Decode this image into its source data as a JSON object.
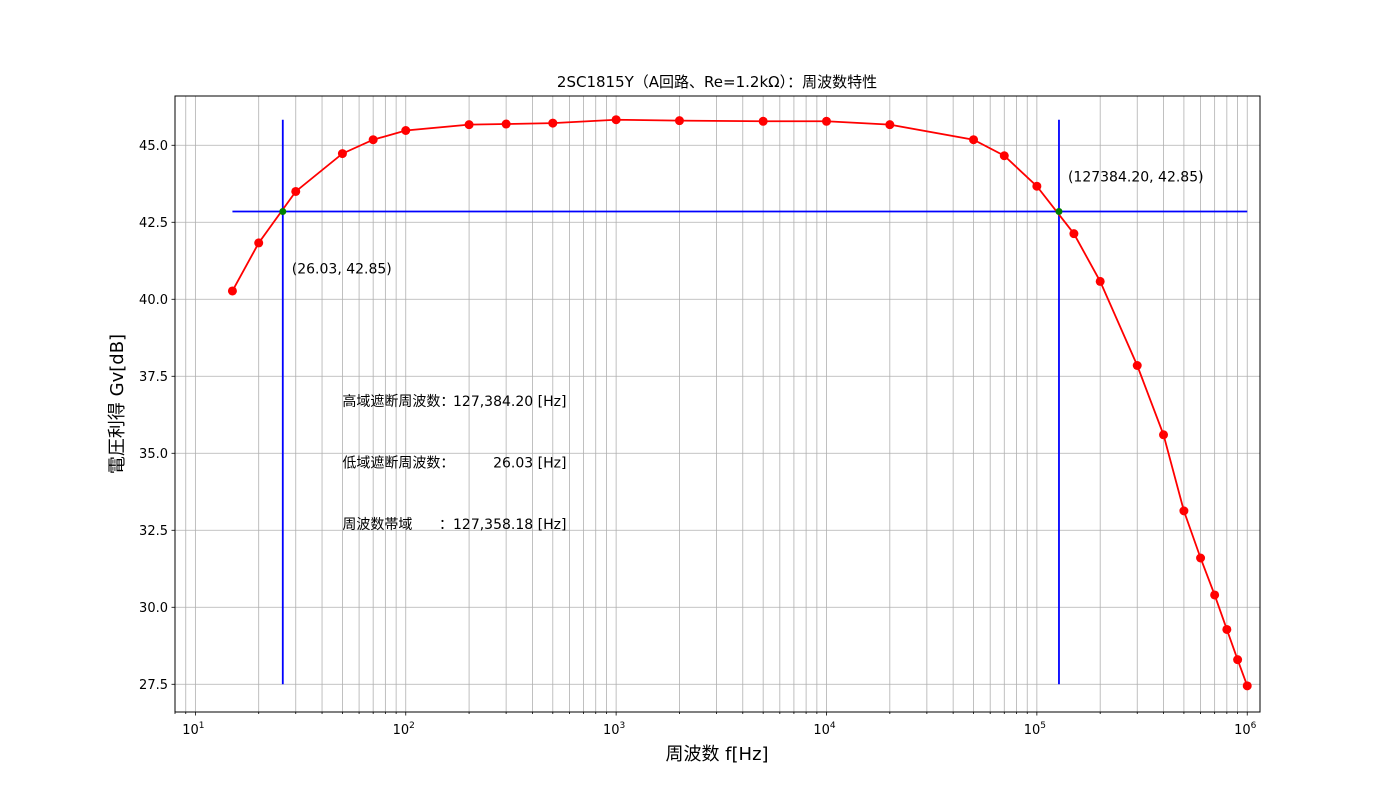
{
  "chart_data": {
    "type": "line",
    "title": "2SC1815Y（A回路、Re=1.2kΩ）：周波数特性",
    "xlabel": "周波数 f[Hz]",
    "ylabel": "電圧利得 Gv[dB]",
    "xscale": "log",
    "xlim": [
      8,
      1150000
    ],
    "ylim": [
      26.6,
      46.6
    ],
    "x_ticks": [
      {
        "value": 10,
        "base": "10",
        "exp": "1"
      },
      {
        "value": 100,
        "base": "10",
        "exp": "2"
      },
      {
        "value": 1000,
        "base": "10",
        "exp": "3"
      },
      {
        "value": 10000,
        "base": "10",
        "exp": "4"
      },
      {
        "value": 100000,
        "base": "10",
        "exp": "5"
      },
      {
        "value": 1000000,
        "base": "10",
        "exp": "6"
      }
    ],
    "y_ticks": [
      {
        "value": 27.5,
        "label": "27.5"
      },
      {
        "value": 30.0,
        "label": "30.0"
      },
      {
        "value": 32.5,
        "label": "32.5"
      },
      {
        "value": 35.0,
        "label": "35.0"
      },
      {
        "value": 37.5,
        "label": "37.5"
      },
      {
        "value": 40.0,
        "label": "40.0"
      },
      {
        "value": 42.5,
        "label": "42.5"
      },
      {
        "value": 45.0,
        "label": "45.0"
      }
    ],
    "grid": true,
    "series": [
      {
        "color": "#ff0000",
        "marker": "circle",
        "x": [
          15,
          20,
          30,
          50,
          70,
          100,
          200,
          300,
          500,
          1000,
          2000,
          5000,
          10000,
          20000,
          50000,
          70000,
          100000,
          150000,
          200000,
          300000,
          400000,
          500000,
          600000,
          700000,
          800000,
          900000,
          1000000
        ],
        "y": [
          40.27,
          41.83,
          43.5,
          44.73,
          45.18,
          45.48,
          45.67,
          45.69,
          45.72,
          45.83,
          45.8,
          45.78,
          45.78,
          45.67,
          45.18,
          44.66,
          43.67,
          42.13,
          40.58,
          37.85,
          35.6,
          33.13,
          31.6,
          30.4,
          29.28,
          28.3,
          27.45
        ]
      }
    ],
    "reference_lines": {
      "color": "#0000ff",
      "horizontal": {
        "y": 42.85,
        "x_from": 15,
        "x_to": 1000000
      },
      "vertical": [
        {
          "x": 26.03,
          "y_from": 27.5,
          "y_to": 45.83
        },
        {
          "x": 127384.2,
          "y_from": 27.5,
          "y_to": 45.83
        }
      ]
    },
    "cutoff_points": {
      "color": "#008000",
      "points": [
        {
          "x": 26.03,
          "y": 42.85,
          "label": "(26.03, 42.85)"
        },
        {
          "x": 127384.2,
          "y": 42.85,
          "label": "(127384.20, 42.85)"
        }
      ]
    },
    "annotations": [
      {
        "name": "annotation-high-cutoff",
        "label": "高域遮断周波数：",
        "value": "127,384.20 [Hz]",
        "x": 50,
        "y": 36.7
      },
      {
        "name": "annotation-low-cutoff",
        "label": "低域遮断周波数：",
        "value": "26.03 [Hz]",
        "x": 50,
        "y": 34.7
      },
      {
        "name": "annotation-bandwidth",
        "label": "周波数帯域",
        "value": "：127,358.18 [Hz]",
        "x": 50,
        "y": 32.7
      }
    ]
  }
}
